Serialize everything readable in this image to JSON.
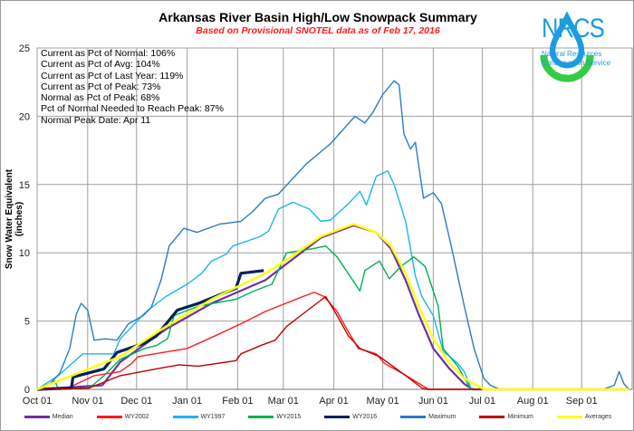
{
  "header": {
    "title": "Arkansas River Basin High/Low Snowpack Summary",
    "subtitle": "Based on Provisional SNOTEL data as of Feb 17, 2016"
  },
  "logo": {
    "text": "NRCS",
    "sub1": "Natural Resources",
    "sub2": "Conservation Service",
    "color": "#1b9ce0",
    "accent": "#33cc44"
  },
  "stats": [
    "Current  as Pct of Normal: 106%",
    "Current  as Pct of Avg: 104%",
    "Current  as Pct of Last Year: 119%",
    "Current  as Pct of Peak: 73%",
    "Normal  as Pct of Peak: 68%",
    "Pct of Normal Needed  to Reach Peak: 87%",
    "Normal  Peak Date: Apr 11"
  ],
  "chart_data": {
    "type": "line",
    "title": "Arkansas River Basin High/Low Snowpack Summary",
    "subtitle": "Based on Provisional SNOTEL data as of Feb 17, 2016",
    "xlabel": "",
    "ylabel": "Snow Water Equivalent (inches)",
    "ylim": [
      0,
      25
    ],
    "yticks": [
      "0",
      "5",
      "10",
      "15",
      "20",
      "25"
    ],
    "xticks": [
      "Oct 01",
      "Nov 01",
      "Dec 01",
      "Jan 01",
      "Feb 01",
      "Mar 01",
      "Apr 01",
      "May 01",
      "Jun 01",
      "Jul 01",
      "Aug 01",
      "Sep 01"
    ],
    "xrange": [
      "Oct 01",
      "Sep 30"
    ],
    "grid": true,
    "legend": "bottom",
    "series": [
      {
        "name": "Median",
        "color": "#7030a0",
        "width": 2.2,
        "points": [
          [
            "Oct 01",
            0
          ],
          [
            "Nov 10",
            0.3
          ],
          [
            "Nov 21",
            2.0
          ],
          [
            "Dec 19",
            4.4
          ],
          [
            "Jan 16",
            6.3
          ],
          [
            "Feb 18",
            8.0
          ],
          [
            "Mar 02",
            9.1
          ],
          [
            "Mar 24",
            11.1
          ],
          [
            "Apr 13",
            12.0
          ],
          [
            "Apr 27",
            11.5
          ],
          [
            "May 06",
            10.3
          ],
          [
            "May 15",
            8.0
          ],
          [
            "May 23",
            5.5
          ],
          [
            "Jun 01",
            3.0
          ],
          [
            "Jun 11",
            1.5
          ],
          [
            "Jun 20",
            0.4
          ],
          [
            "Jun 25",
            0
          ],
          [
            "Sep 30",
            0
          ]
        ]
      },
      {
        "name": "WY2002",
        "color": "#ff1a1a",
        "width": 1.4,
        "points": [
          [
            "Oct 01",
            0
          ],
          [
            "Oct 20",
            0.1
          ],
          [
            "Nov 05",
            1.0
          ],
          [
            "Nov 21",
            1.3
          ],
          [
            "Nov 28",
            1.9
          ],
          [
            "Dec 02",
            2.4
          ],
          [
            "Jan 01",
            3.0
          ],
          [
            "Jan 16",
            3.8
          ],
          [
            "Feb 03",
            4.8
          ],
          [
            "Feb 18",
            5.7
          ],
          [
            "Mar 13",
            6.8
          ],
          [
            "Mar 20",
            7.1
          ],
          [
            "Mar 26",
            6.8
          ],
          [
            "Apr 03",
            5.7
          ],
          [
            "Apr 08",
            4.6
          ],
          [
            "Apr 16",
            3.0
          ],
          [
            "Apr 27",
            2.6
          ],
          [
            "May 02",
            1.9
          ],
          [
            "May 14",
            1.1
          ],
          [
            "May 25",
            0.3
          ],
          [
            "May 29",
            0
          ],
          [
            "Sep 30",
            0
          ]
        ]
      },
      {
        "name": "WY1997",
        "color": "#1eb4f0",
        "width": 1.4,
        "points": [
          [
            "Oct 01",
            0
          ],
          [
            "Oct 14",
            1.0
          ],
          [
            "Oct 29",
            2.6
          ],
          [
            "Nov 17",
            2.6
          ],
          [
            "Nov 21",
            3.7
          ],
          [
            "Dec 07",
            5.7
          ],
          [
            "Dec 19",
            6.8
          ],
          [
            "Jan 01",
            7.7
          ],
          [
            "Jan 10",
            8.5
          ],
          [
            "Jan 16",
            9.4
          ],
          [
            "Jan 25",
            9.9
          ],
          [
            "Jan 29",
            10.5
          ],
          [
            "Feb 15",
            11.2
          ],
          [
            "Feb 20",
            11.6
          ],
          [
            "Feb 26",
            13.2
          ],
          [
            "Mar 07",
            13.7
          ],
          [
            "Mar 17",
            13.2
          ],
          [
            "Mar 24",
            12.3
          ],
          [
            "Mar 30",
            12.4
          ],
          [
            "Apr 10",
            13.6
          ],
          [
            "Apr 17",
            14.5
          ],
          [
            "Apr 21",
            13.5
          ],
          [
            "Apr 27",
            15.6
          ],
          [
            "May 04",
            16.0
          ],
          [
            "May 08",
            15.0
          ],
          [
            "May 15",
            12.3
          ],
          [
            "May 21",
            8.3
          ],
          [
            "May 25",
            6.8
          ],
          [
            "Jun 01",
            5.4
          ],
          [
            "Jun 07",
            2.8
          ],
          [
            "Jun 16",
            1.9
          ],
          [
            "Jun 20",
            1.3
          ],
          [
            "Jun 24",
            0.1
          ],
          [
            "Jun 28",
            0
          ],
          [
            "Sep 30",
            0
          ]
        ]
      },
      {
        "name": "WY2015",
        "color": "#00b050",
        "width": 1.4,
        "points": [
          [
            "Oct 01",
            0
          ],
          [
            "Oct 12",
            0.6
          ],
          [
            "Oct 14",
            0
          ],
          [
            "Nov 02",
            0.1
          ],
          [
            "Nov 11",
            1.0
          ],
          [
            "Nov 21",
            2.2
          ],
          [
            "Dec 06",
            3.0
          ],
          [
            "Dec 13",
            3.2
          ],
          [
            "Dec 20",
            3.7
          ],
          [
            "Dec 24",
            5.4
          ],
          [
            "Jan 08",
            6.1
          ],
          [
            "Jan 31",
            6.6
          ],
          [
            "Feb 11",
            7.2
          ],
          [
            "Feb 22",
            7.7
          ],
          [
            "Mar 03",
            10.0
          ],
          [
            "Mar 19",
            10.3
          ],
          [
            "Mar 27",
            10.5
          ],
          [
            "Apr 03",
            9.7
          ],
          [
            "Apr 17",
            7.2
          ],
          [
            "Apr 20",
            8.7
          ],
          [
            "Apr 29",
            9.4
          ],
          [
            "May 05",
            8.1
          ],
          [
            "May 12",
            9.0
          ],
          [
            "May 20",
            9.7
          ],
          [
            "May 27",
            9.0
          ],
          [
            "Jun 04",
            6.1
          ],
          [
            "Jun 07",
            3.0
          ],
          [
            "Jun 16",
            1.7
          ],
          [
            "Jun 24",
            0
          ],
          [
            "Sep 30",
            0
          ]
        ]
      },
      {
        "name": "WY2016",
        "color": "#002060",
        "width": 3.2,
        "points": [
          [
            "Oct 01",
            0
          ],
          [
            "Oct 22",
            0.1
          ],
          [
            "Oct 23",
            0.9
          ],
          [
            "Nov 11",
            1.5
          ],
          [
            "Nov 19",
            2.7
          ],
          [
            "Dec 06",
            3.4
          ],
          [
            "Dec 13",
            3.9
          ],
          [
            "Dec 26",
            5.8
          ],
          [
            "Jan 08",
            6.3
          ],
          [
            "Jan 31",
            7.4
          ],
          [
            "Feb 03",
            8.5
          ],
          [
            "Feb 17",
            8.7
          ]
        ]
      },
      {
        "name": "Maximum",
        "color": "#2a7cc8",
        "width": 1.4,
        "points": [
          [
            "Oct 01",
            0
          ],
          [
            "Oct 09",
            0.4
          ],
          [
            "Oct 15",
            1.2
          ],
          [
            "Oct 21",
            3.0
          ],
          [
            "Oct 25",
            5.5
          ],
          [
            "Oct 28",
            6.3
          ],
          [
            "Nov 01",
            5.8
          ],
          [
            "Nov 05",
            3.6
          ],
          [
            "Nov 12",
            3.7
          ],
          [
            "Nov 19",
            3.6
          ],
          [
            "Nov 26",
            4.8
          ],
          [
            "Dec 05",
            5.4
          ],
          [
            "Dec 10",
            6.0
          ],
          [
            "Dec 16",
            8.0
          ],
          [
            "Dec 21",
            10.5
          ],
          [
            "Dec 30",
            11.8
          ],
          [
            "Jan 07",
            11.5
          ],
          [
            "Jan 21",
            12.1
          ],
          [
            "Feb 03",
            12.3
          ],
          [
            "Feb 10",
            13.0
          ],
          [
            "Feb 18",
            14.0
          ],
          [
            "Feb 26",
            14.3
          ],
          [
            "Mar 15",
            16.5
          ],
          [
            "Mar 30",
            18.0
          ],
          [
            "Apr 14",
            20.0
          ],
          [
            "Apr 20",
            19.5
          ],
          [
            "Apr 25",
            20.3
          ],
          [
            "May 01",
            21.6
          ],
          [
            "May 08",
            22.6
          ],
          [
            "May 11",
            22.3
          ],
          [
            "May 14",
            18.7
          ],
          [
            "May 18",
            17.6
          ],
          [
            "May 21",
            18.1
          ],
          [
            "May 26",
            14.0
          ],
          [
            "Jun 01",
            14.4
          ],
          [
            "Jun 06",
            13.6
          ],
          [
            "Jun 12",
            10.5
          ],
          [
            "Jun 20",
            6.1
          ],
          [
            "Jun 26",
            3.0
          ],
          [
            "Jul 02",
            0.8
          ],
          [
            "Jul 06",
            0.3
          ],
          [
            "Jul 12",
            0
          ],
          [
            "Sep 14",
            0
          ],
          [
            "Sep 21",
            0.3
          ],
          [
            "Sep 24",
            1.3
          ],
          [
            "Sep 27",
            0.4
          ],
          [
            "Sep 30",
            0
          ]
        ]
      },
      {
        "name": "Minimum",
        "color": "#c00000",
        "width": 1.4,
        "points": [
          [
            "Oct 01",
            0
          ],
          [
            "Nov 02",
            0.1
          ],
          [
            "Nov 21",
            1.0
          ],
          [
            "Dec 13",
            1.5
          ],
          [
            "Dec 27",
            1.8
          ],
          [
            "Jan 08",
            1.7
          ],
          [
            "Jan 31",
            2.1
          ],
          [
            "Feb 03",
            2.6
          ],
          [
            "Feb 15",
            3.2
          ],
          [
            "Feb 24",
            3.6
          ],
          [
            "Mar 03",
            4.6
          ],
          [
            "Mar 15",
            5.7
          ],
          [
            "Mar 27",
            6.8
          ],
          [
            "Apr 03",
            5.4
          ],
          [
            "Apr 10",
            3.9
          ],
          [
            "Apr 17",
            3.0
          ],
          [
            "Apr 29",
            2.4
          ],
          [
            "May 14",
            1.1
          ],
          [
            "May 25",
            0.1
          ],
          [
            "May 28",
            0
          ],
          [
            "Sep 30",
            0
          ]
        ]
      },
      {
        "name": "Averages",
        "color": "#ffff00",
        "width": 2.4,
        "points": [
          [
            "Oct 01",
            0
          ],
          [
            "Nov 21",
            2.4
          ],
          [
            "Dec 19",
            4.6
          ],
          [
            "Jan 16",
            6.6
          ],
          [
            "Feb 18",
            8.5
          ],
          [
            "Mar 02",
            9.4
          ],
          [
            "Mar 24",
            11.2
          ],
          [
            "Apr 13",
            12.1
          ],
          [
            "Apr 27",
            11.5
          ],
          [
            "May 06",
            10.5
          ],
          [
            "May 15",
            8.5
          ],
          [
            "May 23",
            6.1
          ],
          [
            "Jun 01",
            3.7
          ],
          [
            "Jun 11",
            1.9
          ],
          [
            "Jun 20",
            0.8
          ],
          [
            "Jul 02",
            0
          ],
          [
            "Sep 30",
            0
          ]
        ]
      }
    ]
  }
}
